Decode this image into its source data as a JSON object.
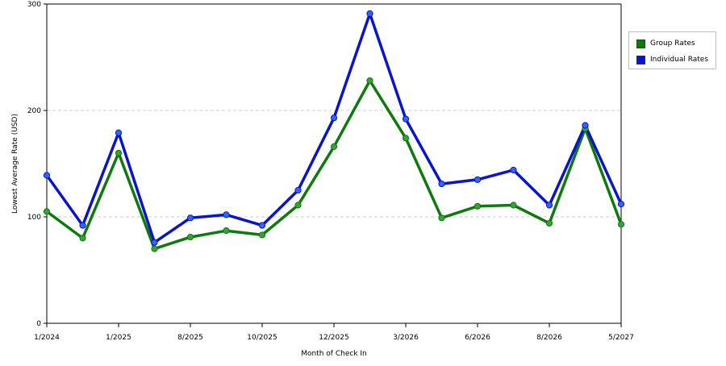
{
  "chart_data": {
    "type": "line",
    "title": "",
    "xlabel": "Month of Check In",
    "ylabel": "Lowest Average Rate (USD)",
    "ylim": [
      0,
      300
    ],
    "yticks": [
      0,
      100,
      200,
      300
    ],
    "grid": true,
    "legend_position": "top-right",
    "x_tick_labels": [
      {
        "index": 0,
        "label": "1/2024"
      },
      {
        "index": 2,
        "label": "1/2025"
      },
      {
        "index": 4,
        "label": "8/2025"
      },
      {
        "index": 6,
        "label": "10/2025"
      },
      {
        "index": 8,
        "label": "12/2025"
      },
      {
        "index": 10,
        "label": "3/2026"
      },
      {
        "index": 12,
        "label": "6/2026"
      },
      {
        "index": 14,
        "label": "8/2026"
      },
      {
        "index": 16,
        "label": "5/2027"
      }
    ],
    "point_count": 17,
    "series": [
      {
        "name": "Group Rates",
        "color": "#0e7a0d",
        "marker_color": "#3d9e3a",
        "values": [
          105,
          80,
          160,
          70,
          81,
          87,
          83,
          111,
          166,
          228,
          174,
          99,
          110,
          111,
          94,
          183,
          93
        ]
      },
      {
        "name": "Individual Rates",
        "color": "#0a14c8",
        "marker_color": "#3366ee",
        "values": [
          139,
          92,
          179,
          76,
          99,
          102,
          92,
          125,
          193,
          291,
          192,
          131,
          135,
          144,
          111,
          186,
          112
        ]
      }
    ]
  }
}
